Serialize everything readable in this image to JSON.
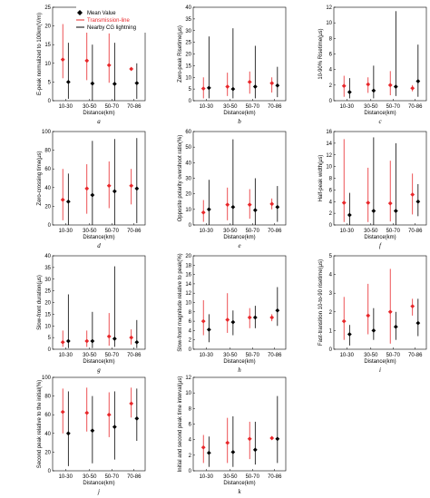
{
  "legend": {
    "mean": "Mean Value",
    "transmission": "Transmission-line",
    "lightning": "Nearby CG lightning"
  },
  "colors": {
    "transmission": "#e8272a",
    "lightning": "#000000",
    "frame": "#000000"
  },
  "chart_data": [
    {
      "type": "scatter",
      "letter": "a",
      "ylabel": "E-peak normalized to 100km(V/m)",
      "xlabel": "Distance(km)",
      "categories": [
        "10-30",
        "30-50",
        "50-70",
        "70-86"
      ],
      "ylim": [
        0,
        25
      ],
      "yticks": [
        0,
        5,
        10,
        15,
        20,
        25
      ],
      "series": [
        {
          "name": "Transmission-line",
          "mean": [
            11,
            10.7,
            9.5,
            8.5
          ],
          "low": [
            6,
            5.5,
            4.8,
            8.5
          ],
          "high": [
            20.5,
            19,
            18,
            8.5
          ]
        },
        {
          "name": "Nearby CG lightning",
          "mean": [
            5,
            4.6,
            4.5,
            4.7
          ],
          "low": [
            0.5,
            0,
            0,
            0.5
          ],
          "high": [
            15.5,
            15,
            15.5,
            10
          ]
        }
      ]
    },
    {
      "type": "scatter",
      "letter": "b",
      "ylabel": "Zero-peak Risetime(μs)",
      "xlabel": "Distance(km)",
      "categories": [
        "10-30",
        "30-50",
        "50-70",
        "70-86"
      ],
      "ylim": [
        0,
        40
      ],
      "yticks": [
        0,
        5,
        10,
        15,
        20,
        25,
        30,
        35,
        40
      ],
      "series": [
        {
          "name": "Transmission-line",
          "mean": [
            5.2,
            6,
            8,
            7.5
          ],
          "low": [
            1,
            2,
            3,
            3.5
          ],
          "high": [
            10,
            12,
            12.5,
            10
          ]
        },
        {
          "name": "Nearby CG lightning",
          "mean": [
            5.5,
            5,
            6,
            6.5
          ],
          "low": [
            1,
            1,
            1,
            1.5
          ],
          "high": [
            27.5,
            31,
            23.5,
            14.5
          ]
        }
      ]
    },
    {
      "type": "scatter",
      "letter": "c",
      "ylabel": "10-90% Risetime(μs)",
      "xlabel": "Distance(km)",
      "categories": [
        "10-30",
        "30-50",
        "50-70",
        "70-86"
      ],
      "ylim": [
        0,
        12
      ],
      "yticks": [
        0,
        2,
        4,
        6,
        8,
        10,
        12
      ],
      "series": [
        {
          "name": "Transmission-line",
          "mean": [
            1.9,
            2.1,
            2,
            1.6
          ],
          "low": [
            0.5,
            1,
            0.7,
            1.2
          ],
          "high": [
            3.2,
            3,
            3.8,
            2
          ]
        },
        {
          "name": "Nearby CG lightning",
          "mean": [
            1.1,
            1.3,
            1.8,
            2.5
          ],
          "low": [
            0.3,
            0.3,
            0.6,
            0.5
          ],
          "high": [
            2.9,
            4.5,
            11.5,
            7.2
          ]
        }
      ]
    },
    {
      "type": "scatter",
      "letter": "d",
      "ylabel": "Zero-crossing time(μs)",
      "xlabel": "Distance(km)",
      "categories": [
        "10-30",
        "30-50",
        "50-70",
        "70-86"
      ],
      "ylim": [
        0,
        100
      ],
      "yticks": [
        0,
        20,
        40,
        60,
        80,
        100
      ],
      "series": [
        {
          "name": "Transmission-line",
          "mean": [
            27,
            39,
            42,
            42
          ],
          "low": [
            5,
            12,
            18,
            22
          ],
          "high": [
            60,
            65,
            68,
            60
          ]
        },
        {
          "name": "Nearby CG lightning",
          "mean": [
            25,
            32,
            36,
            39
          ],
          "low": [
            0,
            0,
            0,
            2
          ],
          "high": [
            55,
            90,
            92,
            93
          ]
        }
      ]
    },
    {
      "type": "scatter",
      "letter": "e",
      "ylabel": "Opposite polarity overshoot ratio(%)",
      "xlabel": "Distance(km)",
      "categories": [
        "10-30",
        "30-50",
        "50-70",
        "70-86"
      ],
      "ylim": [
        0,
        60
      ],
      "yticks": [
        0,
        10,
        20,
        30,
        40,
        50,
        60
      ],
      "series": [
        {
          "name": "Transmission-line",
          "mean": [
            8,
            13,
            13,
            13.5
          ],
          "low": [
            2,
            3,
            4,
            10
          ],
          "high": [
            16,
            24,
            23,
            17
          ]
        },
        {
          "name": "Nearby CG lightning",
          "mean": [
            10,
            11.5,
            9.5,
            11.5
          ],
          "low": [
            0,
            0,
            0,
            2
          ],
          "high": [
            29,
            55,
            30,
            25
          ]
        }
      ]
    },
    {
      "type": "scatter",
      "letter": "f",
      "ylabel": "Half-peak width(μs)",
      "xlabel": "Distance(km)",
      "categories": [
        "10-30",
        "30-50",
        "50-70",
        "70-86"
      ],
      "ylim": [
        0,
        16
      ],
      "yticks": [
        0,
        2,
        4,
        6,
        8,
        10,
        12,
        14,
        16
      ],
      "series": [
        {
          "name": "Transmission-line",
          "mean": [
            3.8,
            3.8,
            3.7,
            5.2
          ],
          "low": [
            0.5,
            0.5,
            0.6,
            1.8
          ],
          "high": [
            14.7,
            9.8,
            11,
            8.8
          ]
        },
        {
          "name": "Nearby CG lightning",
          "mean": [
            1.7,
            2.4,
            2.4,
            4
          ],
          "low": [
            0,
            0,
            0,
            1.5
          ],
          "high": [
            5.5,
            15,
            14,
            7
          ]
        }
      ]
    },
    {
      "type": "scatter",
      "letter": "g",
      "ylabel": "Slow-front duration(μs)",
      "xlabel": "Distance(km)",
      "categories": [
        "10-30",
        "30-50",
        "50-70",
        "70-86"
      ],
      "ylim": [
        0,
        40
      ],
      "yticks": [
        0,
        5,
        10,
        15,
        20,
        25,
        30,
        35,
        40
      ],
      "series": [
        {
          "name": "Transmission-line",
          "mean": [
            3,
            3.5,
            5.5,
            5
          ],
          "low": [
            1,
            1,
            1.5,
            2
          ],
          "high": [
            8,
            8,
            15.5,
            8.5
          ]
        },
        {
          "name": "Nearby CG lightning",
          "mean": [
            3.5,
            3.5,
            4.5,
            3
          ],
          "low": [
            0.5,
            0.5,
            1,
            0.5
          ],
          "high": [
            23.5,
            16,
            35.5,
            12.5
          ]
        }
      ]
    },
    {
      "type": "scatter",
      "letter": "h",
      "ylabel": "Slow-front magnitude relative to peak(%)",
      "xlabel": "Distance(km)",
      "categories": [
        "10-30",
        "30-50",
        "50-70",
        "70-86"
      ],
      "ylim": [
        0,
        20
      ],
      "yticks": [
        0,
        2,
        4,
        6,
        8,
        10,
        12,
        14,
        16,
        18,
        20
      ],
      "series": [
        {
          "name": "Transmission-line",
          "mean": [
            6,
            6.3,
            6.8,
            6.8
          ],
          "low": [
            3,
            3.5,
            4.5,
            6
          ],
          "high": [
            10.5,
            12,
            8.8,
            7.5
          ]
        },
        {
          "name": "Nearby CG lightning",
          "mean": [
            4.2,
            5.8,
            6.8,
            8.3
          ],
          "low": [
            1.5,
            3,
            4.5,
            5
          ],
          "high": [
            7.5,
            8.3,
            9.3,
            13.3
          ]
        }
      ]
    },
    {
      "type": "scatter",
      "letter": "i",
      "ylabel": "Fast-transition 10-to-90 risetime(μs)",
      "xlabel": "Distance(km)",
      "categories": [
        "10-30",
        "30-50",
        "50-70",
        "70-86"
      ],
      "ylim": [
        0,
        5
      ],
      "yticks": [
        0,
        1,
        2,
        3,
        4,
        5
      ],
      "series": [
        {
          "name": "Transmission-line",
          "mean": [
            1.5,
            1.8,
            2,
            2.3
          ],
          "low": [
            0.5,
            0.8,
            0.3,
            1.8
          ],
          "high": [
            2.8,
            3.5,
            4.3,
            2.7
          ]
        },
        {
          "name": "Nearby CG lightning",
          "mean": [
            0.8,
            1,
            1.2,
            1.4
          ],
          "low": [
            0.2,
            0.5,
            0.5,
            0.7
          ],
          "high": [
            1.3,
            2.2,
            2,
            2.7
          ]
        }
      ]
    },
    {
      "type": "scatter",
      "letter": "j",
      "ylabel": "Second peak relative to the initial(%)",
      "xlabel": "Distance(km)",
      "categories": [
        "10-30",
        "30-50",
        "50-70",
        "70-86"
      ],
      "ylim": [
        0,
        100
      ],
      "yticks": [
        0,
        20,
        40,
        60,
        80,
        100
      ],
      "series": [
        {
          "name": "Transmission-line",
          "mean": [
            63,
            62,
            60,
            72
          ],
          "low": [
            40,
            42,
            36,
            57
          ],
          "high": [
            88,
            89,
            84,
            89
          ]
        },
        {
          "name": "Nearby CG lightning",
          "mean": [
            40,
            43,
            47,
            56
          ],
          "low": [
            5,
            8,
            12,
            32
          ],
          "high": [
            85,
            80,
            85,
            88
          ]
        }
      ]
    },
    {
      "type": "scatter",
      "letter": "k",
      "ylabel": "Initial and second peak time interval(μs)",
      "xlabel": "Distance(km)",
      "categories": [
        "10-30",
        "30-50",
        "50-70",
        "70-86"
      ],
      "ylim": [
        0,
        12
      ],
      "yticks": [
        0,
        2,
        4,
        6,
        8,
        10,
        12
      ],
      "series": [
        {
          "name": "Transmission-line",
          "mean": [
            3,
            3.6,
            4.1,
            4.2
          ],
          "low": [
            1,
            1,
            1.5,
            4.2
          ],
          "high": [
            4.6,
            6.8,
            6.3,
            4.2
          ]
        },
        {
          "name": "Nearby CG lightning",
          "mean": [
            2.3,
            2.4,
            2.7,
            4.1
          ],
          "low": [
            0.5,
            0.5,
            0.8,
            1
          ],
          "high": [
            4.4,
            7,
            6.3,
            9.6
          ]
        }
      ]
    }
  ]
}
